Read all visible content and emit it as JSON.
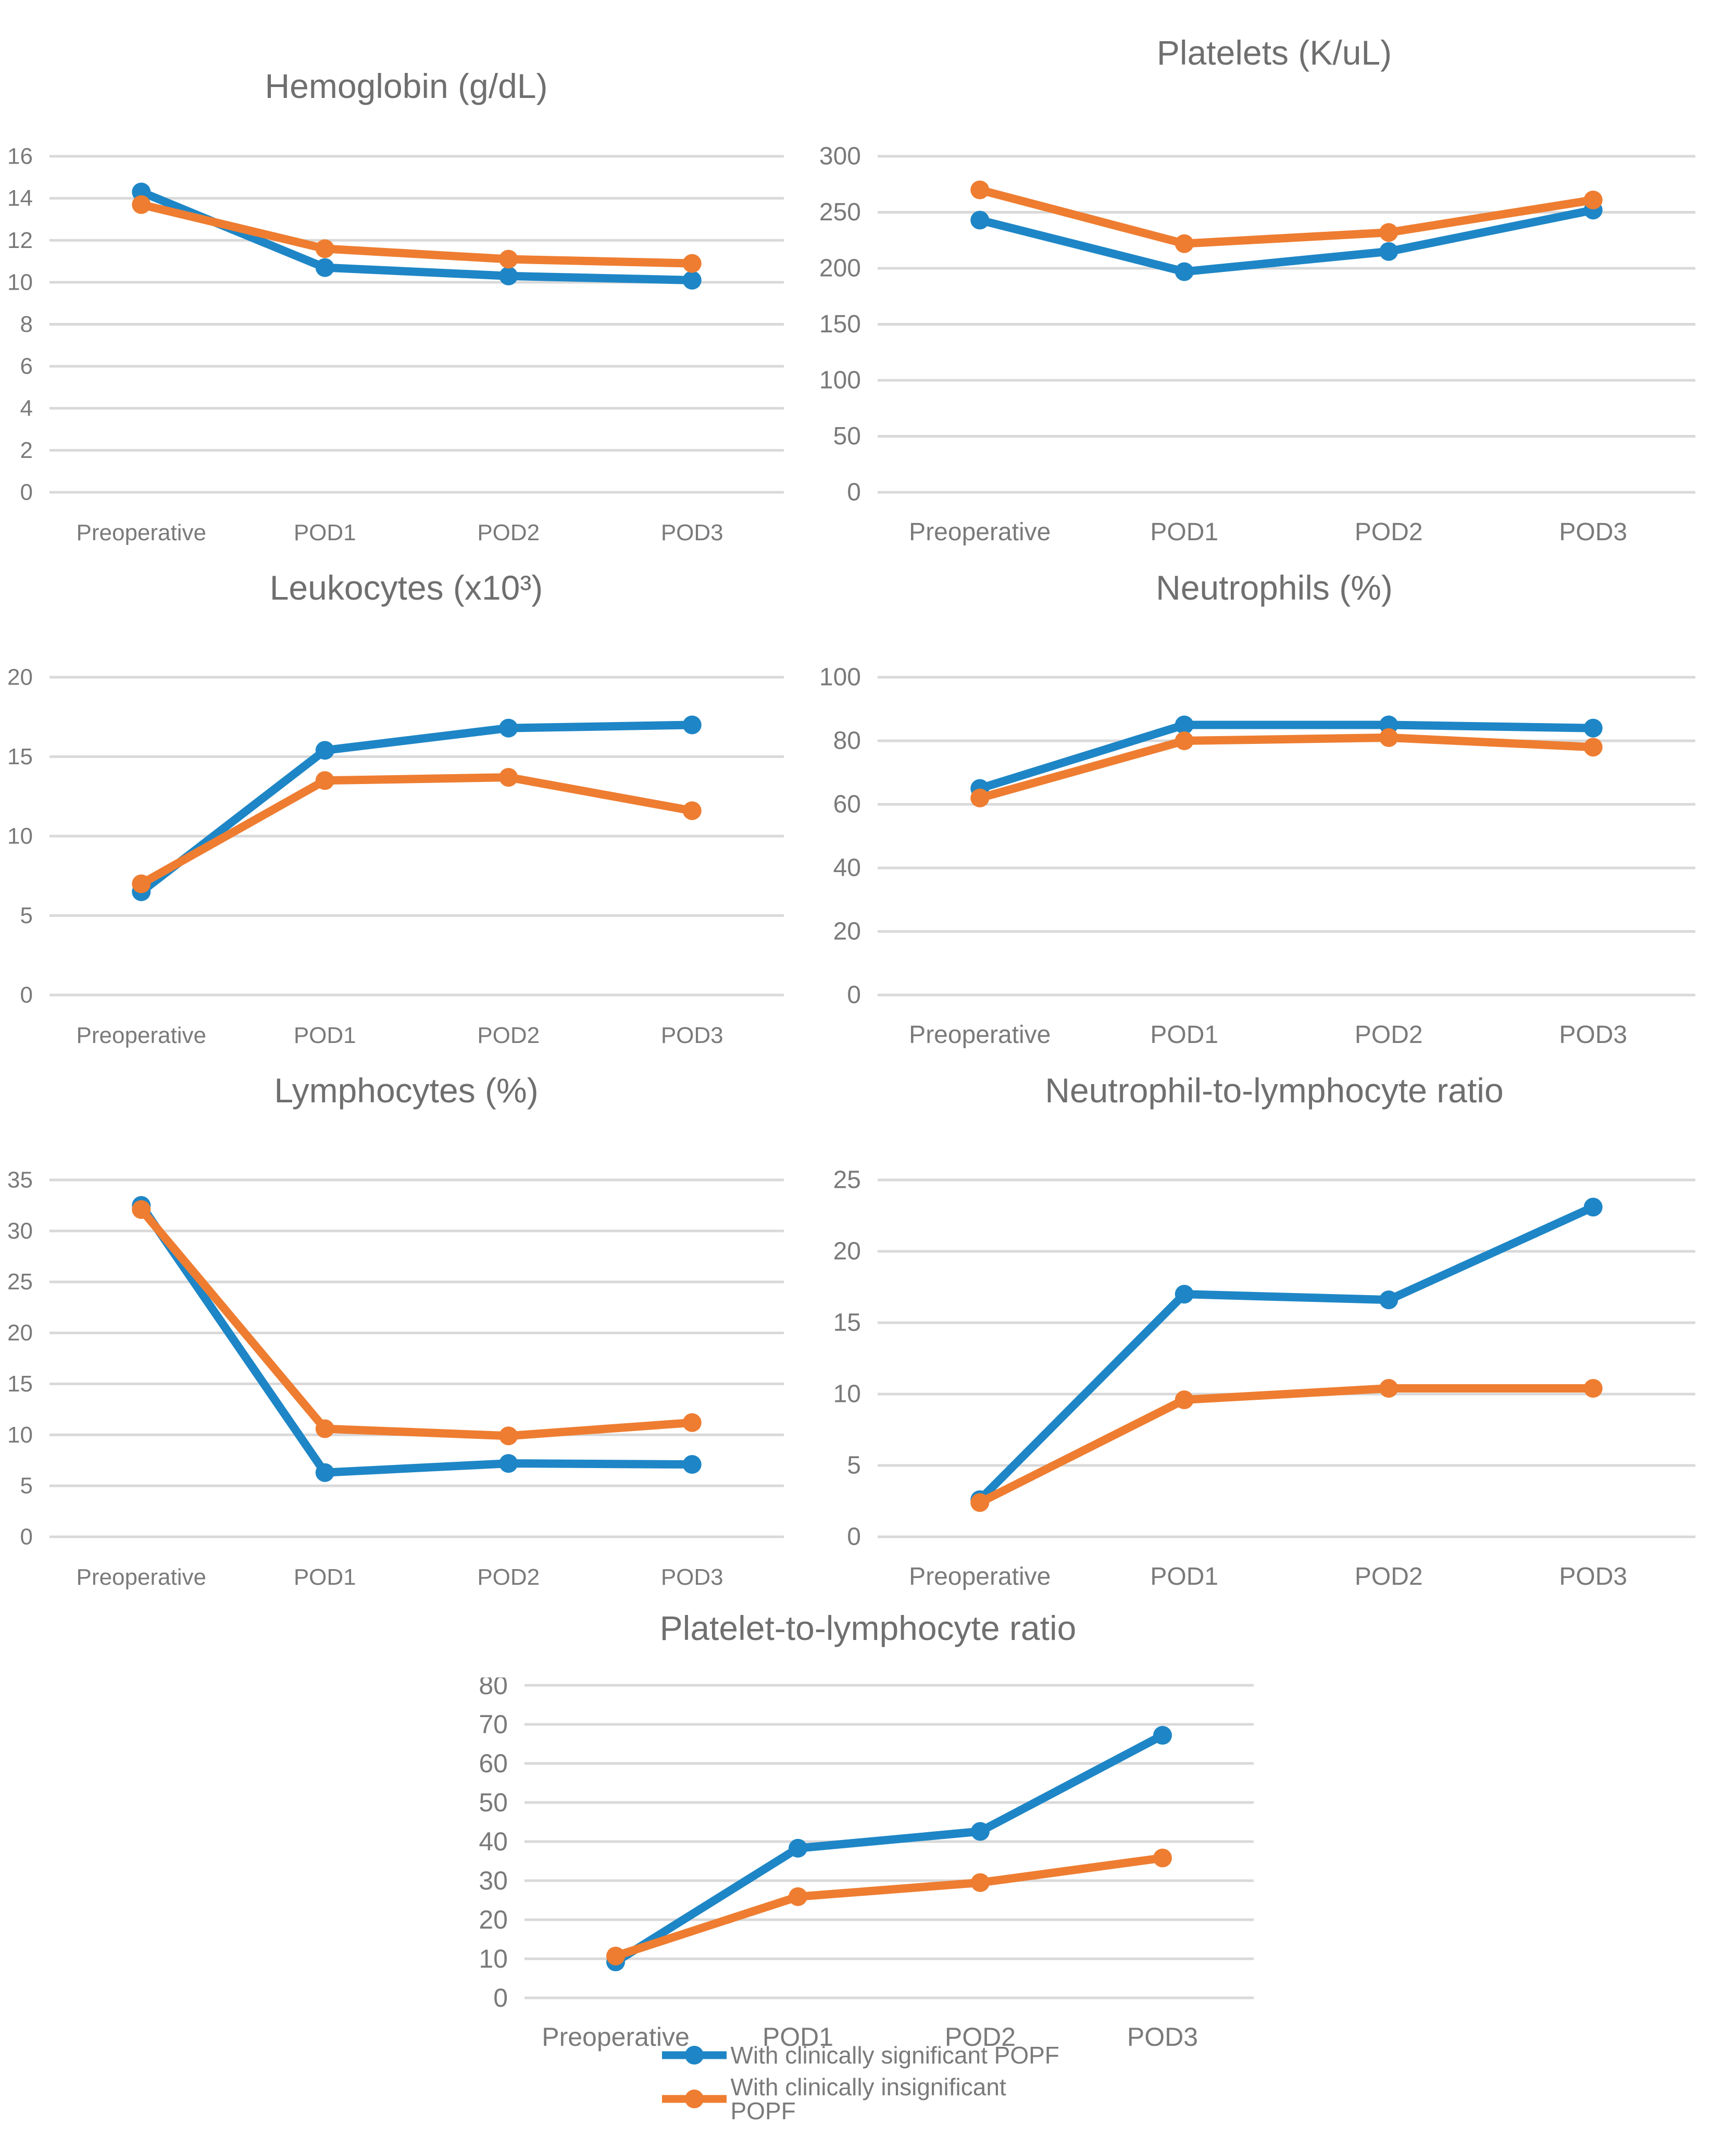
{
  "figure": {
    "background": "#ffffff"
  },
  "colors": {
    "significant": "#1E86C6",
    "insignificant": "#EE7D31",
    "grid": "#D9D9D9",
    "title_text": "#6F6F6F",
    "axis_text": "#7A7A7A"
  },
  "categories": [
    "Preoperative",
    "POD1",
    "POD2",
    "POD3"
  ],
  "legend": {
    "position": "bottom",
    "items": [
      {
        "label": "With clinically significant POPF",
        "color": "#1E86C6"
      },
      {
        "label": "With clinically insignificant POPF",
        "color": "#EE7D31"
      }
    ]
  },
  "chart_data": [
    {
      "id": "hemoglobin",
      "type": "line",
      "title": "Hemoglobin (g/dL)",
      "categories": [
        "Preoperative",
        "POD1",
        "POD2",
        "POD3"
      ],
      "ylim": [
        0,
        16
      ],
      "yticks": [
        0,
        2,
        4,
        6,
        8,
        10,
        12,
        14,
        16
      ],
      "grid": true,
      "legend_position": "none",
      "series": [
        {
          "name": "With clinically significant POPF",
          "color": "#1E86C6",
          "values": [
            14.3,
            10.7,
            10.3,
            10.1
          ]
        },
        {
          "name": "With clinically insignificant POPF",
          "color": "#EE7D31",
          "values": [
            13.7,
            11.6,
            11.1,
            10.9
          ]
        }
      ]
    },
    {
      "id": "platelets",
      "type": "line",
      "title": "Platelets (K/uL)",
      "categories": [
        "Preoperative",
        "POD1",
        "POD2",
        "POD3"
      ],
      "ylim": [
        0,
        300
      ],
      "yticks": [
        0,
        50,
        100,
        150,
        200,
        250,
        300
      ],
      "grid": true,
      "legend_position": "none",
      "series": [
        {
          "name": "With clinically significant POPF",
          "color": "#1E86C6",
          "values": [
            243,
            197,
            215,
            252
          ]
        },
        {
          "name": "With clinically insignificant POPF",
          "color": "#EE7D31",
          "values": [
            270,
            222,
            232,
            261
          ]
        }
      ]
    },
    {
      "id": "leukocytes",
      "type": "line",
      "title": "Leukocytes (x10³)",
      "categories": [
        "Preoperative",
        "POD1",
        "POD2",
        "POD3"
      ],
      "ylim": [
        0,
        20
      ],
      "yticks": [
        0,
        5,
        10,
        15,
        20
      ],
      "grid": true,
      "legend_position": "none",
      "series": [
        {
          "name": "With clinically significant POPF",
          "color": "#1E86C6",
          "values": [
            6.5,
            15.4,
            16.8,
            17.0
          ]
        },
        {
          "name": "With clinically insignificant POPF",
          "color": "#EE7D31",
          "values": [
            7.0,
            13.5,
            13.7,
            11.6
          ]
        }
      ]
    },
    {
      "id": "neutrophils",
      "type": "line",
      "title": "Neutrophils (%)",
      "categories": [
        "Preoperative",
        "POD1",
        "POD2",
        "POD3"
      ],
      "ylim": [
        0,
        100
      ],
      "yticks": [
        0,
        20,
        40,
        60,
        80,
        100
      ],
      "grid": true,
      "legend_position": "none",
      "series": [
        {
          "name": "With clinically significant POPF",
          "color": "#1E86C6",
          "values": [
            65,
            85,
            85,
            84
          ]
        },
        {
          "name": "With clinically insignificant POPF",
          "color": "#EE7D31",
          "values": [
            62,
            80,
            81,
            78
          ]
        }
      ]
    },
    {
      "id": "lymphocytes",
      "type": "line",
      "title": "Lymphocytes (%)",
      "categories": [
        "Preoperative",
        "POD1",
        "POD2",
        "POD3"
      ],
      "ylim": [
        0,
        35
      ],
      "yticks": [
        0,
        5,
        10,
        15,
        20,
        25,
        30,
        35
      ],
      "grid": true,
      "legend_position": "none",
      "series": [
        {
          "name": "With clinically significant POPF",
          "color": "#1E86C6",
          "values": [
            32.5,
            6.3,
            7.2,
            7.1
          ]
        },
        {
          "name": "With clinically insignificant POPF",
          "color": "#EE7D31",
          "values": [
            32.1,
            10.6,
            9.9,
            11.2
          ]
        }
      ]
    },
    {
      "id": "neutrophil-to-lymphocyte-ratio",
      "type": "line",
      "title": "Neutrophil-to-lymphocyte ratio",
      "categories": [
        "Preoperative",
        "POD1",
        "POD2",
        "POD3"
      ],
      "ylim": [
        0,
        25
      ],
      "yticks": [
        0,
        5,
        10,
        15,
        20,
        25
      ],
      "grid": true,
      "legend_position": "none",
      "series": [
        {
          "name": "With clinically significant POPF",
          "color": "#1E86C6",
          "values": [
            2.6,
            17.0,
            16.6,
            23.1
          ]
        },
        {
          "name": "With clinically insignificant POPF",
          "color": "#EE7D31",
          "values": [
            2.4,
            9.6,
            10.4,
            10.4
          ]
        }
      ]
    },
    {
      "id": "platelet-to-lymphocyte-ratio",
      "type": "line",
      "title": "Platelet-to-lymphocyte ratio",
      "categories": [
        "Preoperative",
        "POD1",
        "POD2",
        "POD3"
      ],
      "ylim": [
        0,
        80
      ],
      "yticks": [
        0,
        10,
        20,
        30,
        40,
        50,
        60,
        70,
        80
      ],
      "grid": true,
      "legend_position": "none",
      "series": [
        {
          "name": "With clinically significant POPF",
          "color": "#1E86C6",
          "values": [
            9.2,
            38.3,
            42.6,
            67.2
          ]
        },
        {
          "name": "With clinically insignificant POPF",
          "color": "#EE7D31",
          "values": [
            10.7,
            25.9,
            29.5,
            35.8
          ]
        }
      ]
    }
  ]
}
